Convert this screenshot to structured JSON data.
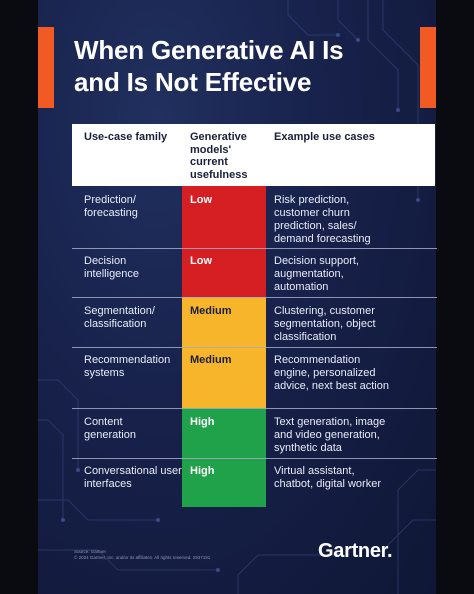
{
  "title": {
    "line1": "When Generative AI Is",
    "line2": "and Is Not Effective"
  },
  "table": {
    "headers": {
      "family": "Use-case family",
      "usefulness": "Generative models' current usefulness",
      "examples": "Example use cases"
    },
    "rows": [
      {
        "family": "Prediction/ forecasting",
        "level": "Low",
        "level_color": "#d51f23",
        "examples": "Risk prediction, customer churn prediction, sales/ demand forecasting"
      },
      {
        "family": "Decision intelligence",
        "level": "Low",
        "level_color": "#d51f23",
        "examples": "Decision support, augmentation, automation"
      },
      {
        "family": "Segmentation/ classification",
        "level": "Medium",
        "level_color": "#f7b52c",
        "examples": "Clustering, customer segmentation, object classification"
      },
      {
        "family": "Recommendation systems",
        "level": "Medium",
        "level_color": "#f7b52c",
        "examples": "Recommendation engine, personalized advice, next best action"
      },
      {
        "family": "Content generation",
        "level": "High",
        "level_color": "#20a24a",
        "examples": "Text generation, image and video generation, synthetic data"
      },
      {
        "family": "Conversational user interfaces",
        "level": "High",
        "level_color": "#20a24a",
        "examples": "Virtual assistant, chatbot, digital worker"
      }
    ]
  },
  "footer": {
    "source_line1": "Source: Gartner",
    "source_line2": "© 2024 Gartner, Inc. and/or its affiliates. All rights reserved. 2937191",
    "brand": "Gartner"
  },
  "colors": {
    "accent": "#f15a22",
    "background": "#17214a",
    "low": "#d51f23",
    "medium": "#f7b52c",
    "high": "#20a24a"
  }
}
